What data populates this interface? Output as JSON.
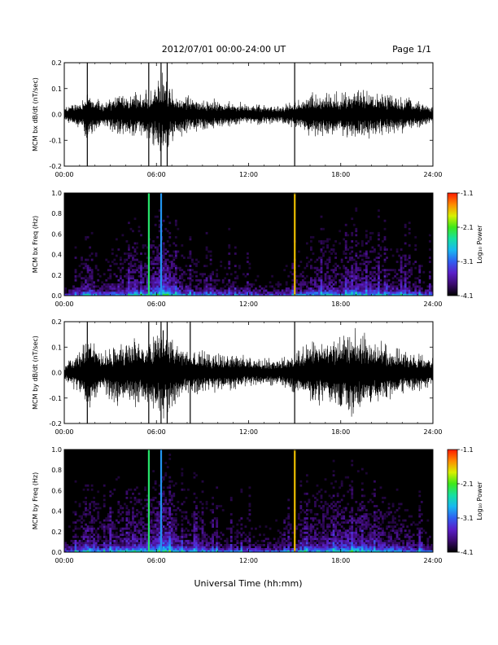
{
  "header": {
    "title": "2012/07/01   00:00-24:00 UT",
    "page": "Page 1/1"
  },
  "footer": {
    "xlabel": "Universal Time (hh:mm)"
  },
  "colors": {
    "trace": "#000000",
    "spectrogram_background": "#000000",
    "colormap": [
      "#000000",
      "#3b0a6e",
      "#5a1fc8",
      "#2f5ef0",
      "#18b8f0",
      "#16e0a0",
      "#3de81a",
      "#d8f000",
      "#ff8a00",
      "#ff1a00"
    ]
  },
  "chart_data": [
    {
      "type": "line",
      "ylabel": "MCM bx dB/dt (nT/sec)",
      "xlim": [
        0,
        24
      ],
      "ylim": [
        -0.2,
        0.2
      ],
      "xticks": [
        "00:00",
        "06:00",
        "12:00",
        "18:00",
        "24:00"
      ],
      "yticks": [
        "-0.2",
        "-0.1",
        "0.0",
        "0.1",
        "0.2"
      ],
      "grid": false,
      "series": [
        {
          "hours": [
            0,
            1,
            1.5,
            2,
            2.5,
            3,
            3.5,
            4,
            4.5,
            5,
            5.5,
            6,
            6.5,
            7,
            7.5,
            8,
            9,
            10,
            11,
            12,
            13,
            14,
            14.5,
            15,
            15.5,
            16,
            17,
            17.5,
            18,
            19,
            20,
            21,
            22,
            23,
            24
          ],
          "amplitude": [
            0.03,
            0.06,
            0.11,
            0.08,
            0.05,
            0.07,
            0.09,
            0.08,
            0.1,
            0.09,
            0.1,
            0.14,
            0.2,
            0.12,
            0.09,
            0.08,
            0.07,
            0.06,
            0.05,
            0.05,
            0.04,
            0.04,
            0.05,
            0.06,
            0.07,
            0.09,
            0.1,
            0.1,
            0.09,
            0.11,
            0.1,
            0.09,
            0.08,
            0.06,
            0.04
          ],
          "spikes": [
            [
              1.5,
              0.2
            ],
            [
              5.5,
              0.2
            ],
            [
              6.3,
              0.2
            ],
            [
              6.7,
              0.2
            ],
            [
              15,
              0.2
            ]
          ]
        }
      ]
    },
    {
      "type": "heatmap",
      "ylabel": "MCM bx Freq (Hz)",
      "xlim": [
        0,
        24
      ],
      "ylim": [
        0.0,
        1.0
      ],
      "xticks": [
        "00:00",
        "06:00",
        "12:00",
        "18:00",
        "24:00"
      ],
      "yticks": [
        "0.0",
        "0.2",
        "0.4",
        "0.6",
        "0.8",
        "1.0"
      ],
      "colorbar": {
        "label": "Log₁₀ Power",
        "ticks": [
          "-1.1",
          "-2.1",
          "-3.1",
          "-4.1"
        ],
        "range": [
          -4.1,
          -1.1
        ]
      },
      "activity_hours": [
        0,
        1,
        1.5,
        2,
        2.5,
        3,
        3.5,
        4,
        4.5,
        5,
        5.5,
        6,
        6.5,
        7,
        7.5,
        8,
        9,
        10,
        11,
        12,
        13,
        14,
        14.5,
        15,
        15.5,
        16,
        17,
        17.5,
        18,
        19,
        20,
        21,
        22,
        23,
        24
      ],
      "activity_level": [
        0.2,
        0.4,
        0.7,
        0.5,
        0.35,
        0.5,
        0.6,
        0.55,
        0.7,
        0.6,
        0.65,
        0.8,
        0.95,
        0.7,
        0.55,
        0.5,
        0.45,
        0.4,
        0.35,
        0.35,
        0.3,
        0.3,
        0.35,
        0.4,
        0.45,
        0.55,
        0.6,
        0.6,
        0.55,
        0.65,
        0.6,
        0.55,
        0.5,
        0.4,
        0.3
      ],
      "broadband_lines": [
        [
          5.5,
          -2.3
        ],
        [
          6.3,
          -2.9
        ],
        [
          15,
          -1.6
        ]
      ]
    },
    {
      "type": "line",
      "ylabel": "MCM by dB/dt (nT/sec)",
      "xlim": [
        0,
        24
      ],
      "ylim": [
        -0.2,
        0.2
      ],
      "xticks": [
        "00:00",
        "06:00",
        "12:00",
        "18:00",
        "24:00"
      ],
      "yticks": [
        "-0.2",
        "-0.1",
        "0.0",
        "0.1",
        "0.2"
      ],
      "grid": false,
      "series": [
        {
          "hours": [
            0,
            1,
            1.5,
            2,
            2.5,
            3,
            3.5,
            4,
            4.5,
            5,
            5.5,
            6,
            6.5,
            7,
            7.5,
            8,
            9,
            10,
            11,
            12,
            13,
            14,
            14.5,
            15,
            15.5,
            16,
            17,
            17.5,
            18,
            19,
            20,
            21,
            22,
            23,
            24
          ],
          "amplitude": [
            0.05,
            0.1,
            0.17,
            0.13,
            0.09,
            0.12,
            0.14,
            0.12,
            0.15,
            0.13,
            0.14,
            0.18,
            0.2,
            0.15,
            0.12,
            0.1,
            0.09,
            0.08,
            0.08,
            0.07,
            0.06,
            0.06,
            0.08,
            0.1,
            0.11,
            0.13,
            0.15,
            0.16,
            0.17,
            0.19,
            0.15,
            0.12,
            0.1,
            0.08,
            0.06
          ],
          "spikes": [
            [
              1.5,
              0.2
            ],
            [
              5.5,
              0.2
            ],
            [
              6.3,
              0.2
            ],
            [
              6.7,
              0.2
            ],
            [
              8.2,
              0.2
            ],
            [
              15,
              0.2
            ]
          ]
        }
      ]
    },
    {
      "type": "heatmap",
      "ylabel": "MCM by Freq (Hz)",
      "xlim": [
        0,
        24
      ],
      "ylim": [
        0.0,
        1.0
      ],
      "xticks": [
        "00:00",
        "06:00",
        "12:00",
        "18:00",
        "24:00"
      ],
      "yticks": [
        "0.0",
        "0.2",
        "0.4",
        "0.6",
        "0.8",
        "1.0"
      ],
      "colorbar": {
        "label": "Log₁₀ Power",
        "ticks": [
          "-1.1",
          "-2.1",
          "-3.1",
          "-4.1"
        ],
        "range": [
          -4.1,
          -1.1
        ]
      },
      "activity_hours": [
        0,
        1,
        1.5,
        2,
        2.5,
        3,
        3.5,
        4,
        4.5,
        5,
        5.5,
        6,
        6.5,
        7,
        7.5,
        8,
        9,
        10,
        11,
        12,
        13,
        14,
        14.5,
        15,
        15.5,
        16,
        17,
        17.5,
        18,
        19,
        20,
        21,
        22,
        23,
        24
      ],
      "activity_level": [
        0.3,
        0.5,
        0.8,
        0.6,
        0.45,
        0.6,
        0.7,
        0.6,
        0.75,
        0.65,
        0.7,
        0.85,
        0.95,
        0.75,
        0.6,
        0.55,
        0.5,
        0.45,
        0.4,
        0.4,
        0.35,
        0.35,
        0.4,
        0.45,
        0.5,
        0.6,
        0.65,
        0.7,
        0.7,
        0.75,
        0.65,
        0.6,
        0.55,
        0.45,
        0.35
      ],
      "broadband_lines": [
        [
          5.5,
          -2.3
        ],
        [
          6.3,
          -2.9
        ],
        [
          15,
          -1.6
        ]
      ]
    }
  ]
}
